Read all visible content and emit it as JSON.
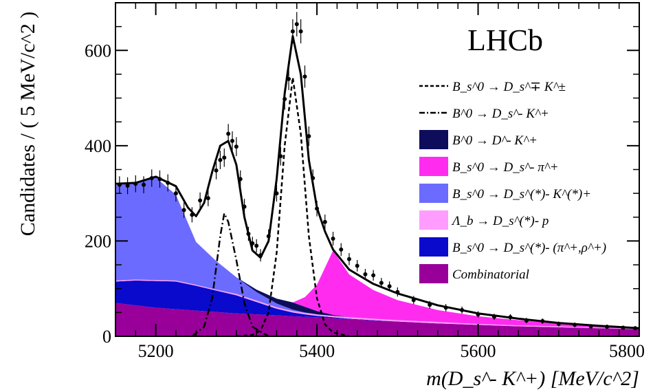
{
  "chart_data": {
    "type": "line",
    "title": "",
    "watermark": "LHCb",
    "xlabel": "m(D_s^- K^+) [MeV/c^2]",
    "ylabel": "Candidates / ( 5 MeV/c^2 )",
    "xlim": [
      5150,
      5800
    ],
    "ylim": [
      0,
      700
    ],
    "x_ticks": [
      "5200",
      "5400",
      "5600",
      "5800"
    ],
    "y_ticks": [
      "0",
      "200",
      "400",
      "600"
    ],
    "grid": false,
    "legend_position": "top-right",
    "legend": [
      {
        "label": "B_s^0 → D_s^∓ K^±",
        "style": "dashed"
      },
      {
        "label": "B^0 → D_s^- K^+",
        "style": "dashdot"
      },
      {
        "label": "B^0 → D^- K^+",
        "style": "fill",
        "color": "#0d0d5c"
      },
      {
        "label": "B_s^0 → D_s^- π^+",
        "style": "fill",
        "color": "#ff2cf0"
      },
      {
        "label": "B_s^0 → D_s^(*)- K^(*)+",
        "style": "fill",
        "color": "#6b6bff"
      },
      {
        "label": "Λ_b → D_s^(*)- p",
        "style": "fill",
        "color": "#ff9cff"
      },
      {
        "label": "B_s^0 → D_s^(*)- (π^+,ρ^+)",
        "style": "fill",
        "color": "#0a0acc"
      },
      {
        "label": "Combinatorial",
        "style": "fill",
        "color": "#990099"
      }
    ],
    "stack_x": [
      5150,
      5175,
      5200,
      5225,
      5250,
      5275,
      5300,
      5325,
      5350,
      5370,
      5385,
      5400,
      5420,
      5440,
      5470,
      5500,
      5550,
      5600,
      5650,
      5700,
      5750,
      5800
    ],
    "stack_series": [
      {
        "name": "Combinatorial",
        "color": "#990099",
        "values": [
          70,
          65,
          60,
          57,
          54,
          51,
          48,
          46,
          44,
          42,
          41,
          40,
          38,
          36,
          33,
          31,
          27,
          24,
          21,
          19,
          17,
          15
        ]
      },
      {
        "name": "B_s^0 → D_s^(*)- (π^+,ρ^+)",
        "color": "#0a0acc",
        "values": [
          45,
          52,
          56,
          58,
          52,
          45,
          38,
          26,
          14,
          8,
          5,
          3,
          2,
          1,
          1,
          0,
          0,
          0,
          0,
          0,
          0,
          0
        ]
      },
      {
        "name": "Λ_b → D_s^(*)- p",
        "color": "#ff9cff",
        "values": [
          2,
          2,
          2,
          2,
          2,
          2,
          3,
          3,
          3,
          3,
          3,
          3,
          3,
          3,
          3,
          3,
          3,
          2,
          2,
          2,
          1,
          1
        ]
      },
      {
        "name": "B_s^0 → D_s^(*)- K^(*)+",
        "color": "#6b6bff",
        "values": [
          200,
          203,
          215,
          180,
          90,
          60,
          35,
          18,
          8,
          3,
          1,
          0,
          0,
          0,
          0,
          0,
          0,
          0,
          0,
          0,
          0,
          0
        ]
      },
      {
        "name": "B^0 → D^- K^+",
        "color": "#0d0d5c",
        "values": [
          0,
          0,
          0,
          0,
          0,
          0,
          0,
          5,
          10,
          15,
          12,
          7,
          2,
          0,
          0,
          0,
          0,
          0,
          0,
          0,
          0,
          0
        ]
      },
      {
        "name": "B_s^0 → D_s^- π^+",
        "color": "#ff2cf0",
        "values": [
          0,
          0,
          0,
          0,
          0,
          0,
          0,
          0,
          0,
          0,
          20,
          55,
          135,
          90,
          60,
          42,
          25,
          16,
          11,
          6,
          3,
          1
        ]
      }
    ],
    "total_fit": {
      "x": [
        5150,
        5175,
        5200,
        5225,
        5240,
        5250,
        5260,
        5270,
        5280,
        5290,
        5300,
        5310,
        5320,
        5330,
        5340,
        5350,
        5360,
        5370,
        5380,
        5390,
        5400,
        5410,
        5420,
        5440,
        5470,
        5500,
        5550,
        5600,
        5650,
        5700,
        5750,
        5800
      ],
      "y": [
        320,
        322,
        335,
        315,
        270,
        252,
        280,
        345,
        400,
        410,
        360,
        250,
        180,
        165,
        200,
        330,
        510,
        630,
        550,
        370,
        270,
        220,
        182,
        140,
        110,
        90,
        65,
        48,
        37,
        28,
        22,
        17
      ]
    },
    "bs_dsk": {
      "x": [
        5300,
        5320,
        5330,
        5340,
        5350,
        5360,
        5370,
        5380,
        5390,
        5400,
        5410,
        5420,
        5440
      ],
      "y": [
        0,
        3,
        12,
        50,
        175,
        400,
        543,
        425,
        210,
        80,
        25,
        8,
        0
      ]
    },
    "b0_dsk": {
      "x": [
        5245,
        5260,
        5270,
        5280,
        5285,
        5290,
        5300,
        5310,
        5320,
        5340
      ],
      "y": [
        0,
        20,
        80,
        210,
        258,
        240,
        160,
        70,
        20,
        0
      ]
    },
    "data_points": {
      "x": [
        5155,
        5165,
        5175,
        5185,
        5195,
        5205,
        5215,
        5225,
        5235,
        5245,
        5255,
        5265,
        5275,
        5280,
        5285,
        5290,
        5295,
        5300,
        5305,
        5310,
        5315,
        5320,
        5325,
        5330,
        5340,
        5350,
        5355,
        5360,
        5365,
        5370,
        5375,
        5380,
        5385,
        5390,
        5395,
        5400,
        5410,
        5420,
        5430,
        5440,
        5450,
        5460,
        5470,
        5480,
        5490,
        5500,
        5520,
        5540,
        5560,
        5580,
        5600,
        5620,
        5640,
        5660,
        5680,
        5700,
        5720,
        5740,
        5760,
        5780,
        5795
      ],
      "y": [
        318,
        316,
        320,
        318,
        332,
        330,
        322,
        300,
        265,
        255,
        285,
        290,
        348,
        370,
        375,
        425,
        410,
        398,
        330,
        272,
        215,
        195,
        190,
        170,
        210,
        300,
        378,
        498,
        540,
        640,
        655,
        640,
        545,
        420,
        332,
        268,
        240,
        205,
        182,
        162,
        148,
        130,
        128,
        112,
        105,
        93,
        76,
        66,
        60,
        55,
        46,
        41,
        40,
        33,
        32,
        26,
        24,
        21,
        20,
        18,
        17
      ]
    }
  }
}
